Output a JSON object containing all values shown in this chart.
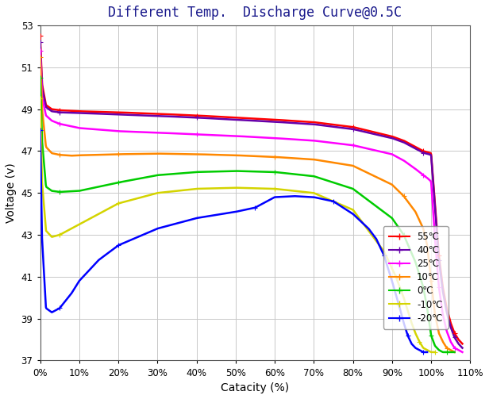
{
  "title": "Different Temp.  Discharge Curve@0.5C",
  "xlabel": "Catacity (%)",
  "ylabel": "Voltage (v)",
  "xlim": [
    0,
    110
  ],
  "ylim": [
    37,
    53
  ],
  "yticks": [
    37,
    39,
    41,
    43,
    45,
    47,
    49,
    51,
    53
  ],
  "xticks": [
    0,
    10,
    20,
    30,
    40,
    50,
    60,
    70,
    80,
    90,
    100,
    110
  ],
  "background_color": "#ffffff",
  "grid_color": "#c8c8c8",
  "title_color": "#1a1a8c",
  "curves": [
    {
      "label": "55℃",
      "color": "#ff0000",
      "x": [
        0,
        0.5,
        1.5,
        3,
        5,
        10,
        20,
        30,
        40,
        50,
        60,
        70,
        80,
        90,
        93,
        96,
        98,
        99,
        100,
        101,
        102,
        103,
        104,
        105,
        106,
        107,
        108
      ],
      "y": [
        52.5,
        50.2,
        49.2,
        49.0,
        48.95,
        48.9,
        48.85,
        48.78,
        48.7,
        48.6,
        48.5,
        48.38,
        48.15,
        47.7,
        47.5,
        47.2,
        47.0,
        46.95,
        46.9,
        44.5,
        42.0,
        40.5,
        39.5,
        38.8,
        38.3,
        38.0,
        37.8
      ]
    },
    {
      "label": "40℃",
      "color": "#6600aa",
      "x": [
        0,
        0.5,
        1.5,
        3,
        5,
        10,
        20,
        30,
        40,
        50,
        60,
        70,
        80,
        90,
        93,
        96,
        98,
        99,
        100,
        101,
        102,
        103,
        104,
        105,
        106,
        107,
        108
      ],
      "y": [
        52.2,
        50.0,
        49.1,
        48.9,
        48.85,
        48.82,
        48.75,
        48.68,
        48.6,
        48.5,
        48.4,
        48.28,
        48.05,
        47.62,
        47.42,
        47.12,
        46.92,
        46.87,
        46.82,
        44.3,
        41.8,
        40.3,
        39.3,
        38.6,
        38.1,
        37.8,
        37.6
      ]
    },
    {
      "label": "25℃",
      "color": "#ff00ff",
      "x": [
        0,
        0.5,
        1.5,
        3,
        5,
        10,
        20,
        30,
        40,
        50,
        60,
        70,
        80,
        90,
        93,
        96,
        98,
        99,
        100,
        101,
        102,
        103,
        104,
        105,
        106,
        107,
        108
      ],
      "y": [
        51.8,
        49.6,
        48.7,
        48.45,
        48.3,
        48.1,
        47.95,
        47.88,
        47.8,
        47.72,
        47.62,
        47.5,
        47.28,
        46.85,
        46.55,
        46.15,
        45.85,
        45.72,
        45.55,
        42.8,
        40.5,
        39.2,
        38.4,
        37.9,
        37.6,
        37.5,
        37.4
      ]
    },
    {
      "label": "10℃",
      "color": "#ff8800",
      "x": [
        0,
        0.5,
        1.5,
        3,
        5,
        8,
        10,
        15,
        20,
        30,
        40,
        50,
        60,
        70,
        80,
        90,
        93,
        96,
        98,
        99,
        100,
        101,
        102,
        103,
        104,
        105,
        106
      ],
      "y": [
        51.5,
        49.0,
        47.2,
        46.9,
        46.82,
        46.78,
        46.8,
        46.82,
        46.85,
        46.88,
        46.85,
        46.8,
        46.72,
        46.6,
        46.3,
        45.4,
        44.85,
        44.1,
        43.3,
        42.5,
        40.8,
        39.2,
        38.3,
        37.9,
        37.6,
        37.5,
        37.4
      ]
    },
    {
      "label": "0℃",
      "color": "#00cc00",
      "x": [
        0,
        0.5,
        1.5,
        3,
        5,
        8,
        10,
        15,
        20,
        30,
        40,
        50,
        60,
        70,
        80,
        90,
        93,
        96,
        98,
        99,
        100,
        101,
        102,
        103,
        104,
        105,
        106
      ],
      "y": [
        50.5,
        47.5,
        45.3,
        45.1,
        45.05,
        45.08,
        45.1,
        45.3,
        45.5,
        45.85,
        46.0,
        46.05,
        46.0,
        45.8,
        45.2,
        43.8,
        43.0,
        41.7,
        40.5,
        39.5,
        38.2,
        37.7,
        37.5,
        37.4,
        37.4,
        37.4,
        37.4
      ]
    },
    {
      "label": "-10℃",
      "color": "#d4d400",
      "x": [
        0,
        0.5,
        1.5,
        3,
        5,
        8,
        10,
        15,
        20,
        30,
        40,
        50,
        60,
        70,
        80,
        88,
        91,
        93,
        95,
        96,
        97,
        98,
        99,
        100,
        101
      ],
      "y": [
        49.5,
        45.5,
        43.2,
        42.9,
        43.0,
        43.3,
        43.5,
        44.0,
        44.5,
        45.0,
        45.2,
        45.25,
        45.2,
        45.0,
        44.2,
        42.2,
        41.0,
        40.0,
        38.8,
        38.3,
        37.9,
        37.6,
        37.5,
        37.4,
        37.4
      ]
    },
    {
      "label": "-20℃",
      "color": "#0000ff",
      "x": [
        0,
        0.5,
        1.5,
        3,
        5,
        8,
        10,
        15,
        20,
        30,
        40,
        50,
        55,
        60,
        65,
        70,
        75,
        80,
        84,
        86,
        88,
        90,
        92,
        93,
        94,
        95,
        96,
        97,
        98,
        99
      ],
      "y": [
        48.0,
        42.8,
        39.5,
        39.3,
        39.5,
        40.2,
        40.8,
        41.8,
        42.5,
        43.3,
        43.8,
        44.1,
        44.3,
        44.8,
        44.85,
        44.8,
        44.6,
        44.0,
        43.3,
        42.8,
        42.0,
        40.8,
        39.5,
        38.8,
        38.2,
        37.8,
        37.6,
        37.5,
        37.4,
        37.4
      ]
    }
  ]
}
